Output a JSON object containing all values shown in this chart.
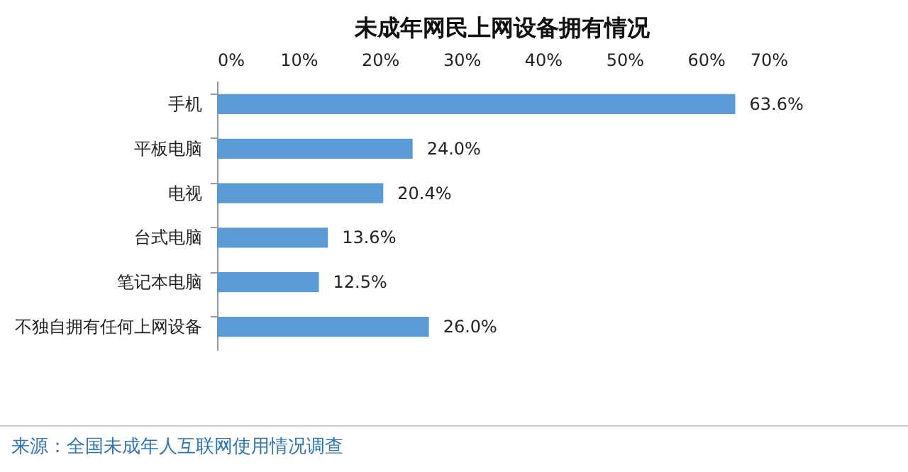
{
  "chart_data": {
    "type": "bar",
    "orientation": "horizontal",
    "title": "未成年网民上网设备拥有情况",
    "categories": [
      "手机",
      "平板电脑",
      "电视",
      "台式电脑",
      "笔记本电脑",
      "不独自拥有任何上网设备"
    ],
    "values": [
      63.6,
      24.0,
      20.4,
      13.6,
      12.5,
      26.0
    ],
    "value_labels": [
      "63.6%",
      "24.0%",
      "20.4%",
      "13.6%",
      "12.5%",
      "26.0%"
    ],
    "color": "#5b9bd5",
    "xlim": [
      0,
      70
    ],
    "xticks": [
      {
        "value": 0,
        "label": "0%"
      },
      {
        "value": 10,
        "label": "10%"
      },
      {
        "value": 20,
        "label": "20%"
      },
      {
        "value": 30,
        "label": "30%"
      },
      {
        "value": 40,
        "label": "40%"
      },
      {
        "value": 50,
        "label": "50%"
      },
      {
        "value": 60,
        "label": "60%"
      },
      {
        "value": 70,
        "label": "70%"
      }
    ],
    "annotations": [
      "来源：全国未成年人互联网使用情况调查"
    ]
  }
}
